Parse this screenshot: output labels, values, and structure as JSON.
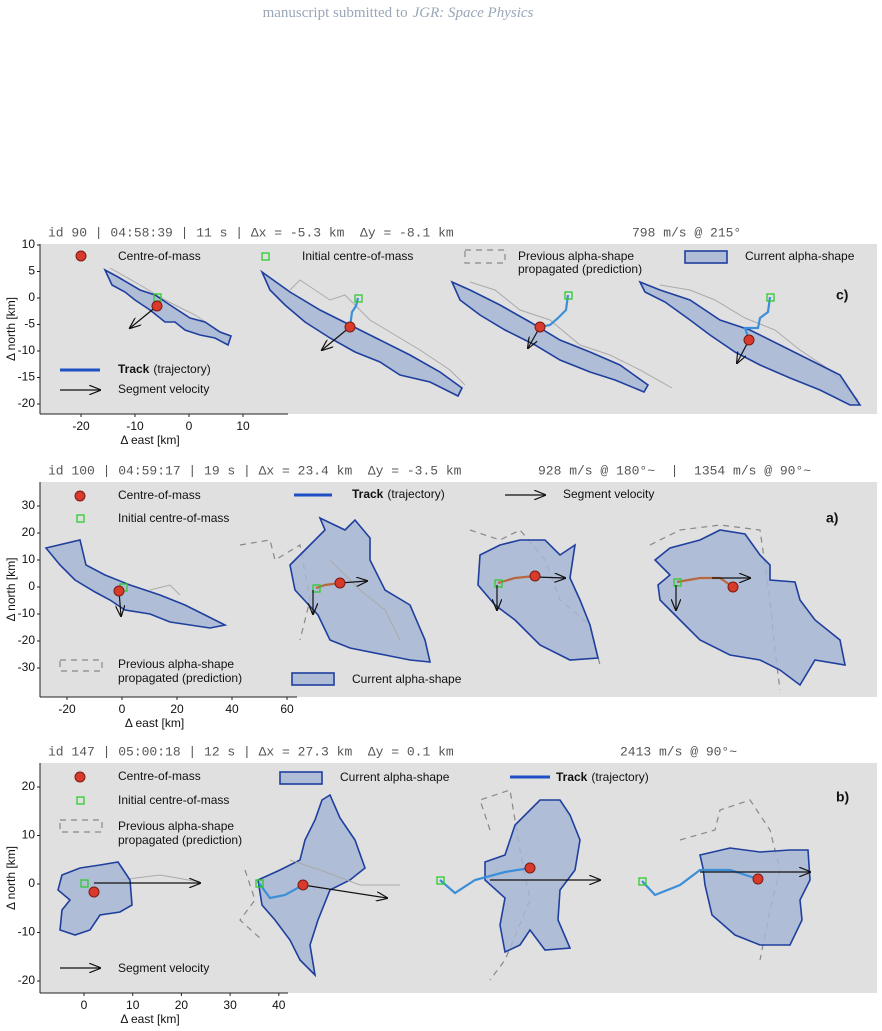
{
  "header": {
    "prefix": "manuscript submitted to",
    "journal": "JGR: Space Physics"
  },
  "panels": [
    {
      "title": "id 90 | 04:58:39 | 11 s | Δx = -5.3 km  Δy = -8.1 km",
      "speed": "798 m/s @ 215°",
      "label": "c)",
      "legend": {
        "centre_of_mass": "Centre-of-mass",
        "initial_centre_of_mass": "Initial centre-of-mass",
        "previous_alpha_shape": [
          "Previous alpha-shape",
          "propagated (prediction)"
        ],
        "current_alpha_shape": "Current alpha-shape",
        "track": {
          "bold": "Track",
          "text": "(trajectory)"
        },
        "segment_velocity": "Segment velocity"
      },
      "xlabel": "Δ east [km]",
      "ylabel": "Δ north [km]",
      "xticks": [
        -20,
        -10,
        0,
        10
      ],
      "yticks": [
        10,
        5,
        0,
        -5,
        -10,
        -15,
        -20
      ]
    },
    {
      "title": "id 100 | 04:59:17 | 19 s | Δx = 23.4 km  Δy = -3.5 km",
      "speed": "928 m/s @ 180°~  |  1354 m/s @ 90°~",
      "label": "a)",
      "legend": {
        "centre_of_mass": "Centre-of-mass",
        "initial_centre_of_mass": "Initial centre-of-mass",
        "previous_alpha_shape": [
          "Previous alpha-shape",
          "propagated (prediction)"
        ],
        "current_alpha_shape": "Current alpha-shape",
        "track": {
          "bold": "Track",
          "text": "(trajectory)"
        },
        "segment_velocity": "Segment velocity"
      },
      "xlabel": "Δ east [km]",
      "ylabel": "Δ north [km]",
      "xticks": [
        -20,
        0,
        20,
        40,
        60
      ],
      "yticks": [
        30,
        20,
        10,
        0,
        -10,
        -20,
        -30
      ]
    },
    {
      "title": "id 147 | 05:00:18 | 12 s | Δx = 27.3 km  Δy = 0.1 km",
      "speed": "2413 m/s @ 90°~",
      "label": "b)",
      "legend": {
        "centre_of_mass": "Centre-of-mass",
        "initial_centre_of_mass": "Initial centre-of-mass",
        "previous_alpha_shape": [
          "Previous alpha-shape",
          "propagated (prediction)"
        ],
        "current_alpha_shape": "Current alpha-shape",
        "track": {
          "bold": "Track",
          "text": "(trajectory)"
        },
        "segment_velocity": "Segment velocity"
      },
      "xlabel": "Δ east [km]",
      "ylabel": "Δ north [km]",
      "xticks": [
        0,
        10,
        20,
        30,
        40
      ],
      "yticks": [
        20,
        10,
        0,
        -10,
        -20
      ]
    }
  ]
}
